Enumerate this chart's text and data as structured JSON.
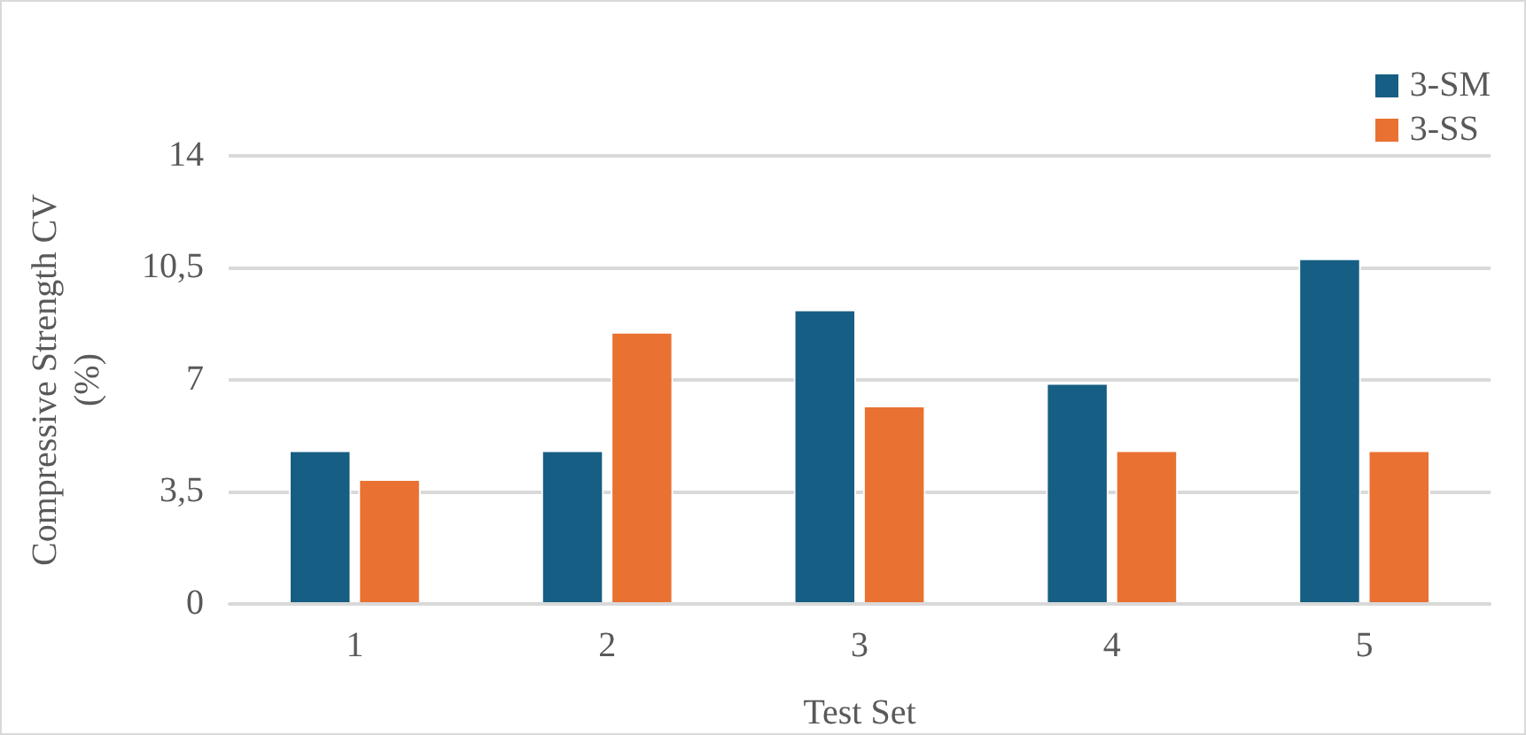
{
  "chart_data": {
    "type": "bar",
    "xlabel": "Test Set",
    "ylabel": "Compressive Strength CV (%)",
    "categories": [
      "1",
      "2",
      "3",
      "4",
      "5"
    ],
    "series": [
      {
        "name": "3-SM",
        "color": "#165e83",
        "values": [
          4.8,
          4.8,
          9.2,
          6.9,
          10.8
        ]
      },
      {
        "name": "3-SS",
        "color": "#e97132",
        "values": [
          3.9,
          8.5,
          6.2,
          4.8,
          4.8
        ]
      }
    ],
    "ylim": [
      0,
      14
    ],
    "yticks": [
      0,
      {
        "value": 3.5,
        "label": "3,5"
      },
      7,
      {
        "value": 10.5,
        "label": "10,5"
      },
      14
    ],
    "grid": "y",
    "legend": "top right"
  }
}
